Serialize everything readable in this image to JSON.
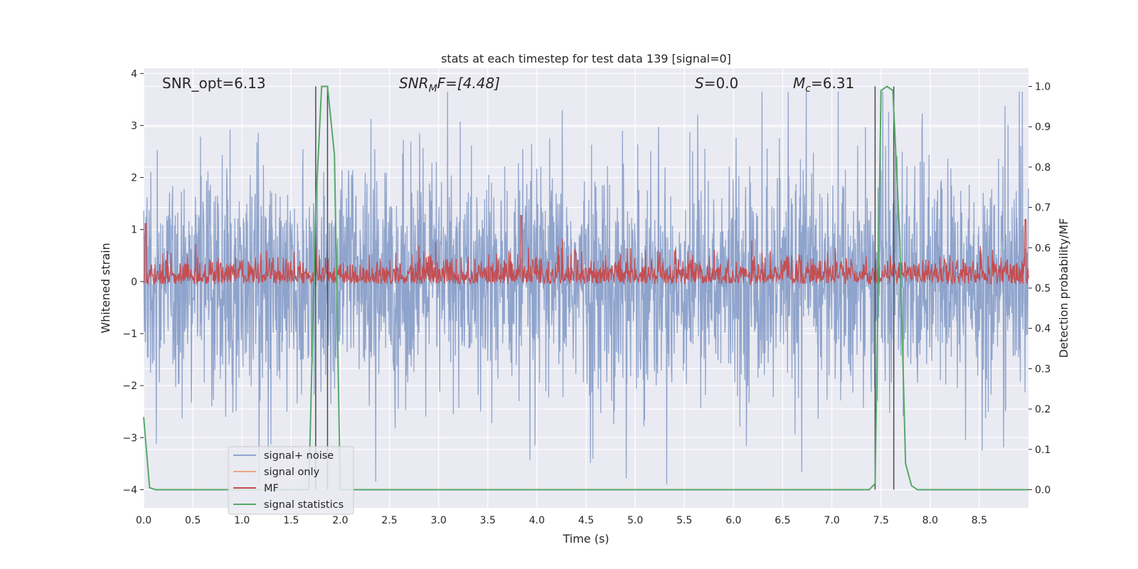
{
  "chart_data": {
    "type": "line",
    "title": "stats at each timestep for test data 139 [signal=0]",
    "xlabel": "Time (s)",
    "ylabel": "Whitened strain",
    "y2label": "Detection probability/MF",
    "xlim": [
      0,
      9.0
    ],
    "ylim": [
      -4.35,
      4.1
    ],
    "y2lim": [
      -0.045,
      1.045
    ],
    "xticks": [
      "0.0",
      "0.5",
      "1.0",
      "1.5",
      "2.0",
      "2.5",
      "3.0",
      "3.5",
      "4.0",
      "4.5",
      "5.0",
      "5.5",
      "6.0",
      "6.5",
      "7.0",
      "7.5",
      "8.0",
      "8.5"
    ],
    "yticks": [
      "4",
      "3",
      "2",
      "1",
      "0",
      "−1",
      "−2",
      "−3",
      "−4"
    ],
    "y2ticks": [
      "1.0",
      "0.9",
      "0.8",
      "0.7",
      "0.6",
      "0.5",
      "0.4",
      "0.3",
      "0.2",
      "0.1",
      "0.0"
    ],
    "grid": true,
    "legend_position": "lower-left",
    "annotations": {
      "snr_opt": "SNR_opt=6.13",
      "snr_mf_main": "SNR",
      "snr_mf_sub": "M",
      "snr_mf_rest": "F=[4.48]",
      "s_main": "S",
      "s_rest": "=0.0",
      "mc_main": "M",
      "mc_sub": "c",
      "mc_rest": "=6.31"
    },
    "series": [
      {
        "name": "signal+ noise",
        "color": "#8fa4cc",
        "description_range": [
          -3.9,
          3.65
        ],
        "typical_band": [
          -1.4,
          1.4
        ],
        "seed": 139
      },
      {
        "name": "signal only",
        "color": "#e9a887",
        "values": []
      },
      {
        "name": "MF",
        "color": "#c44e52",
        "axis": "right",
        "typical_band": [
          0.51,
          0.6
        ],
        "peak_times": [
          0.02,
          3.84,
          8.97
        ],
        "peak_values": [
          0.66,
          0.68,
          0.67
        ]
      },
      {
        "name": "signal statistics",
        "color": "#55a868",
        "axis": "right",
        "x": [
          0.0,
          0.06,
          0.12,
          1.68,
          1.75,
          1.81,
          1.87,
          1.94,
          2.0,
          2.06,
          7.38,
          7.44,
          7.5,
          7.56,
          7.62,
          7.69,
          7.75,
          7.81,
          7.87,
          9.0
        ],
        "y": [
          0.18,
          0.005,
          0.0,
          0.0,
          0.7,
          1.0,
          1.0,
          0.83,
          0.0,
          0.0,
          0.0,
          0.015,
          0.99,
          1.0,
          0.99,
          0.63,
          0.065,
          0.01,
          0.0,
          0.0
        ]
      }
    ],
    "vertical_lines": [
      1.75,
      1.87,
      7.44,
      7.63
    ],
    "vertical_line_color": "#4a4a4a"
  }
}
